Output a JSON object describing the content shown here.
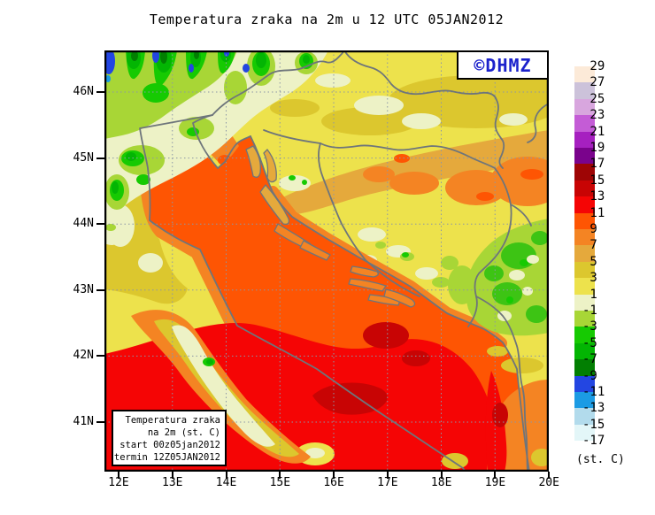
{
  "title": "Temperatura zraka na 2m u 12 UTC 05JAN2012",
  "logo": {
    "text": "©DHMZ",
    "color": "#1C22CC"
  },
  "info_box": {
    "lines": [
      "Temperatura zraka",
      "na 2m (st. C)",
      "start 00z05jan2012",
      "termin 12Z05JAN2012"
    ]
  },
  "axes": {
    "lat_labels": [
      "46N",
      "45N",
      "44N",
      "43N",
      "42N",
      "41N"
    ],
    "lon_labels": [
      "12E",
      "13E",
      "14E",
      "15E",
      "16E",
      "17E",
      "18E",
      "19E",
      "20E"
    ]
  },
  "legend": {
    "unit": "(st. C)",
    "labels": [
      " 29",
      " 27",
      " 25",
      " 23",
      " 21",
      " 19",
      " 17",
      " 15",
      " 13",
      " 11",
      " 9",
      " 7",
      " 5",
      " 3",
      " 1",
      "-1",
      "-3",
      "-5",
      "-7",
      "-9",
      "-11",
      "-13",
      "-15",
      "-17"
    ],
    "colors": [
      "#FCEAD8",
      "#CCC2DA",
      "#D8A6DE",
      "#C45CD6",
      "#A620C0",
      "#7A038C",
      "#9E0505",
      "#C80404",
      "#F50505",
      "#FE5503",
      "#F48423",
      "#E5A93C",
      "#DCC72E",
      "#EDE24C",
      "#EDF2C6",
      "#A8D636",
      "#16CA02",
      "#03B503",
      "#027F02",
      "#2346E2",
      "#1B9BE4",
      "#B2DBEC",
      "#E3F6F8",
      "#FFFFFF"
    ]
  },
  "map_colors": {
    "sea_mid_11_13": "#F50505",
    "sea_north_9_11": "#FE5503",
    "coast_7_9": "#F48423",
    "inland_5_7": "#E5A93C",
    "inland_3_5": "#DCC72E",
    "north_1_3": "#EDE24C",
    "highland_m1_1": "#A8D636",
    "alps_cold": "#2346E2",
    "coastline_gray": "#6E757B",
    "grid_gray": "#8C96A6"
  }
}
